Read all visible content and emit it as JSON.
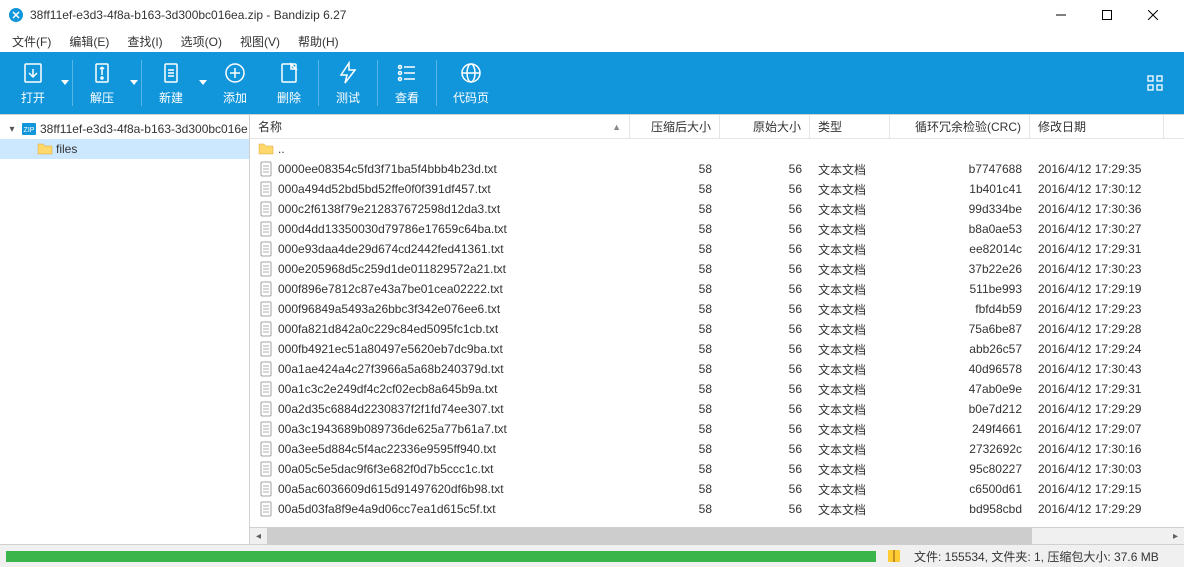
{
  "window": {
    "title": "38ff11ef-e3d3-4f8a-b163-3d300bc016ea.zip - Bandizip 6.27"
  },
  "menu": {
    "file": "文件(F)",
    "edit": "编辑(E)",
    "find": "查找(I)",
    "options": "选项(O)",
    "view": "视图(V)",
    "help": "帮助(H)"
  },
  "toolbar": {
    "open": "打开",
    "extract": "解压",
    "new": "新建",
    "add": "添加",
    "delete": "删除",
    "test": "测试",
    "view": "查看",
    "codepage": "代码页"
  },
  "tree": {
    "root": "38ff11ef-e3d3-4f8a-b163-3d300bc016e",
    "child": "files"
  },
  "headers": {
    "name": "名称",
    "csize": "压缩后大小",
    "osize": "原始大小",
    "type": "类型",
    "crc": "循环冗余检验(CRC)",
    "date": "修改日期"
  },
  "parent": "..",
  "rows": [
    {
      "name": "0000ee08354c5fd3f71ba5f4bbb4b23d.txt",
      "csize": "58",
      "osize": "56",
      "type": "文本文档",
      "crc": "b7747688",
      "date": "2016/4/12 17:29:35"
    },
    {
      "name": "000a494d52bd5bd52ffe0f0f391df457.txt",
      "csize": "58",
      "osize": "56",
      "type": "文本文档",
      "crc": "1b401c41",
      "date": "2016/4/12 17:30:12"
    },
    {
      "name": "000c2f6138f79e212837672598d12da3.txt",
      "csize": "58",
      "osize": "56",
      "type": "文本文档",
      "crc": "99d334be",
      "date": "2016/4/12 17:30:36"
    },
    {
      "name": "000d4dd13350030d79786e17659c64ba.txt",
      "csize": "58",
      "osize": "56",
      "type": "文本文档",
      "crc": "b8a0ae53",
      "date": "2016/4/12 17:30:27"
    },
    {
      "name": "000e93daa4de29d674cd2442fed41361.txt",
      "csize": "58",
      "osize": "56",
      "type": "文本文档",
      "crc": "ee82014c",
      "date": "2016/4/12 17:29:31"
    },
    {
      "name": "000e205968d5c259d1de011829572a21.txt",
      "csize": "58",
      "osize": "56",
      "type": "文本文档",
      "crc": "37b22e26",
      "date": "2016/4/12 17:30:23"
    },
    {
      "name": "000f896e7812c87e43a7be01cea02222.txt",
      "csize": "58",
      "osize": "56",
      "type": "文本文档",
      "crc": "511be993",
      "date": "2016/4/12 17:29:19"
    },
    {
      "name": "000f96849a5493a26bbc3f342e076ee6.txt",
      "csize": "58",
      "osize": "56",
      "type": "文本文档",
      "crc": "fbfd4b59",
      "date": "2016/4/12 17:29:23"
    },
    {
      "name": "000fa821d842a0c229c84ed5095fc1cb.txt",
      "csize": "58",
      "osize": "56",
      "type": "文本文档",
      "crc": "75a6be87",
      "date": "2016/4/12 17:29:28"
    },
    {
      "name": "000fb4921ec51a80497e5620eb7dc9ba.txt",
      "csize": "58",
      "osize": "56",
      "type": "文本文档",
      "crc": "abb26c57",
      "date": "2016/4/12 17:29:24"
    },
    {
      "name": "00a1ae424a4c27f3966a5a68b240379d.txt",
      "csize": "58",
      "osize": "56",
      "type": "文本文档",
      "crc": "40d96578",
      "date": "2016/4/12 17:30:43"
    },
    {
      "name": "00a1c3c2e249df4c2cf02ecb8a645b9a.txt",
      "csize": "58",
      "osize": "56",
      "type": "文本文档",
      "crc": "47ab0e9e",
      "date": "2016/4/12 17:29:31"
    },
    {
      "name": "00a2d35c6884d2230837f2f1fd74ee307.txt",
      "csize": "58",
      "osize": "56",
      "type": "文本文档",
      "crc": "b0e7d212",
      "date": "2016/4/12 17:29:29"
    },
    {
      "name": "00a3c1943689b089736de625a77b61a7.txt",
      "csize": "58",
      "osize": "56",
      "type": "文本文档",
      "crc": "249f4661",
      "date": "2016/4/12 17:29:07"
    },
    {
      "name": "00a3ee5d884c5f4ac22336e9595ff940.txt",
      "csize": "58",
      "osize": "56",
      "type": "文本文档",
      "crc": "2732692c",
      "date": "2016/4/12 17:30:16"
    },
    {
      "name": "00a05c5e5dac9f6f3e682f0d7b5ccc1c.txt",
      "csize": "58",
      "osize": "56",
      "type": "文本文档",
      "crc": "95c80227",
      "date": "2016/4/12 17:30:03"
    },
    {
      "name": "00a5ac6036609d615d91497620df6b98.txt",
      "csize": "58",
      "osize": "56",
      "type": "文本文档",
      "crc": "c6500d61",
      "date": "2016/4/12 17:29:15"
    },
    {
      "name": "00a5d03fa8f9e4a9d06cc7ea1d615c5f.txt",
      "csize": "58",
      "osize": "56",
      "type": "文本文档",
      "crc": "bd958cbd",
      "date": "2016/4/12 17:29:29"
    }
  ],
  "status": {
    "text": "文件: 155534, 文件夹: 1, 压缩包大小: 37.6 MB"
  },
  "colors": {
    "toolbar_bg": "#1296db",
    "progress": "#39b54a"
  }
}
